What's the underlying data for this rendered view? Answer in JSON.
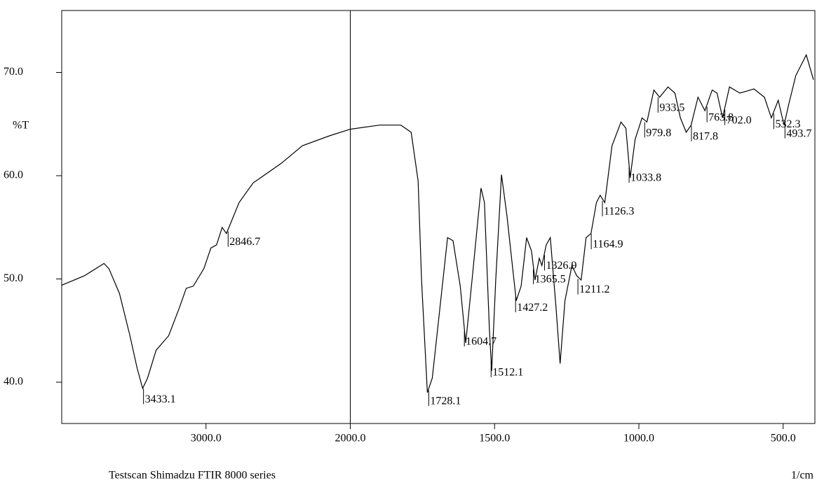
{
  "chart_data": {
    "type": "line",
    "ylabel": "%T",
    "xlabel": "1/cm",
    "footer": "Testscan Shimadzu FTIR 8000 series",
    "color": "#000000",
    "xlim": [
      4000,
      390
    ],
    "xbreak": 2000,
    "ylim": [
      36,
      76
    ],
    "xticks": [
      {
        "value": 3000,
        "label": "3000.0"
      },
      {
        "value": 2000,
        "label": "2000.0"
      },
      {
        "value": 1500,
        "label": "1500.0"
      },
      {
        "value": 1000,
        "label": "1000.0"
      },
      {
        "value": 500,
        "label": "500.0"
      }
    ],
    "yticks": [
      {
        "value": 40,
        "label": "40.0"
      },
      {
        "value": 50,
        "label": "50.0"
      },
      {
        "value": 60,
        "label": "60.0"
      },
      {
        "value": 70,
        "label": "70.0"
      }
    ],
    "x": [
      4000,
      3844,
      3707,
      3673,
      3600,
      3527,
      3478,
      3439,
      3405,
      3346,
      3259,
      3185,
      3137,
      3088,
      3015,
      2966,
      2927,
      2888,
      2859,
      2829,
      2771,
      2673,
      2478,
      2332,
      2137,
      2000,
      1898,
      1825,
      1789,
      1765,
      1753,
      1733,
      1716,
      1692,
      1663,
      1644,
      1619,
      1600,
      1578,
      1547,
      1535,
      1518,
      1510,
      1496,
      1476,
      1457,
      1425,
      1408,
      1389,
      1372,
      1360,
      1345,
      1336,
      1321,
      1307,
      1287,
      1273,
      1256,
      1232,
      1215,
      1200,
      1183,
      1166,
      1147,
      1134,
      1118,
      1093,
      1062,
      1045,
      1030,
      1013,
      989,
      972,
      948,
      928,
      899,
      875,
      856,
      836,
      819,
      795,
      771,
      746,
      729,
      710,
      686,
      650,
      601,
      565,
      541,
      517,
      497,
      480,
      456,
      420,
      395
    ],
    "values": [
      49.4,
      50.3,
      51.5,
      51,
      48.6,
      44.5,
      41.4,
      39.4,
      40.4,
      43.1,
      44.5,
      47.2,
      49.1,
      49.3,
      51,
      53,
      53.3,
      55,
      54.4,
      55.4,
      57.4,
      59.3,
      61.2,
      62.9,
      63.9,
      64.5,
      64.9,
      64.9,
      64.2,
      59.5,
      49.9,
      39,
      40.4,
      46.5,
      54,
      53.7,
      49.3,
      43.8,
      49.9,
      58.8,
      57.4,
      45.2,
      41.1,
      49.9,
      60.1,
      56.1,
      47.9,
      49.3,
      54,
      52.7,
      49.9,
      52,
      51.3,
      53.3,
      54,
      47.2,
      41.8,
      47.9,
      51.3,
      50.3,
      49.9,
      54,
      54.4,
      57.4,
      58.1,
      57.4,
      62.9,
      65.2,
      64.6,
      59.8,
      63.5,
      65.6,
      65.2,
      68.3,
      67.6,
      68.6,
      68,
      65.6,
      64.2,
      64.9,
      67.6,
      66.3,
      68.3,
      68,
      65.6,
      68.6,
      68,
      68.4,
      67.6,
      65.6,
      67.3,
      64.9,
      67,
      69.7,
      71.7,
      69.3
    ],
    "peaks": {
      "values": [
        3433.1,
        2846.7,
        1728.1,
        1604.7,
        1512.1,
        1427.2,
        1365.5,
        1326.9,
        1211.2,
        1164.9,
        1126.3,
        1033.8,
        979.8,
        933.5,
        817.8,
        763.8,
        702.0,
        532.3,
        493.7
      ],
      "value_labels": [
        "3433.1",
        "2846.7",
        "1728.1",
        "1604.7",
        "1512.1",
        "1427.2",
        "1365.5",
        "1326.9",
        "1211.2",
        "1164.9",
        "1126.3",
        "1033.8",
        "979.8",
        "933.5",
        "817.8",
        "763.8",
        "702.0",
        "532.3",
        "493.7"
      ]
    }
  }
}
